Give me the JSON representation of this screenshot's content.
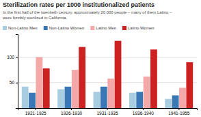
{
  "chart_data": {
    "type": "bar",
    "title": "Sterilization rates per 1000 institutionalized patients",
    "subtitle": "In the first half of the twentieth century, approximately 20,000 people – many of them Latino –\nwere forcibly sterilized in California.",
    "categories": [
      "1921-1925",
      "1926-1930",
      "1931-1935",
      "1936-1940",
      "1941-1955"
    ],
    "series": [
      {
        "name": "Non-Latino Men",
        "color": "#a8cce0",
        "values": [
          42,
          37,
          32,
          30,
          18
        ]
      },
      {
        "name": "Non-Latino Women",
        "color": "#3a78b5",
        "values": [
          30,
          42,
          42,
          32,
          25
        ]
      },
      {
        "name": "Latino Men",
        "color": "#f4a8a8",
        "values": [
          100,
          75,
          58,
          62,
          40
        ]
      },
      {
        "name": "Latino Women",
        "color": "#cc2222",
        "values": [
          78,
          120,
          132,
          115,
          90
        ]
      }
    ],
    "ylim": [
      0,
      145
    ],
    "yticks": [
      50,
      100
    ],
    "grid": true,
    "legend": "top-left"
  }
}
